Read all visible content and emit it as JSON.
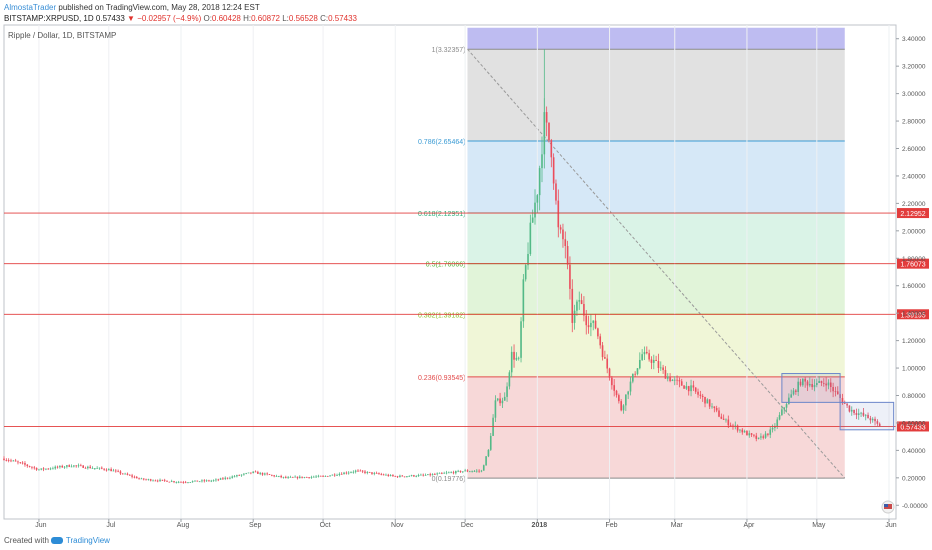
{
  "header": {
    "author": "AlmostaTrader",
    "published_text": " published on TradingView.com, May 28, 2018 12:24 EST"
  },
  "symbol_line": {
    "symbol": "BITSTAMP:XRPUSD, 1D",
    "last": "0.57433",
    "change": "▼ −0.02957 (−4.9%)",
    "o_label": "O:",
    "o": "0.60428",
    "h_label": "H:",
    "h": "0.60872",
    "l_label": "L:",
    "l": "0.56528",
    "c_label": "C:",
    "c": "0.57433"
  },
  "legend_text": "Ripple / Dollar, 1D, BITSTAMP",
  "footer": {
    "created_with": "Created with",
    "brand": "TradingView"
  },
  "chart_data": {
    "type": "candlestick",
    "title": "Ripple / Dollar, 1D, BITSTAMP",
    "y_axis_side": "right",
    "ylim": [
      -0.1,
      3.5
    ],
    "y_ticks": [
      -0.0,
      0.2,
      0.4,
      0.6,
      0.8,
      1.0,
      1.2,
      1.4,
      1.6,
      1.8,
      2.0,
      2.2,
      2.4,
      2.6,
      2.8,
      3.0,
      3.2,
      3.4
    ],
    "y_tick_labels": [
      "-0.00000",
      "0.20000",
      "0.40000",
      "0.60000",
      "0.80000",
      "1.00000",
      "1.20000",
      "1.40000",
      "1.60000",
      "1.80000",
      "2.00000",
      "2.20000",
      "2.40000",
      "2.60000",
      "2.80000",
      "3.00000",
      "3.20000",
      "3.40000"
    ],
    "x_tick_labels": [
      "Jun",
      "Jul",
      "Aug",
      "Sep",
      "Oct",
      "Nov",
      "Dec",
      "2018",
      "Feb",
      "Mar",
      "Apr",
      "May",
      "Jun"
    ],
    "x_tick_dates": [
      "2017-06-01",
      "2017-07-01",
      "2017-08-01",
      "2017-09-01",
      "2017-10-01",
      "2017-11-01",
      "2017-12-01",
      "2018-01-01",
      "2018-02-01",
      "2018-03-01",
      "2018-04-01",
      "2018-05-01",
      "2018-06-01"
    ],
    "x_range": [
      "2017-05-17",
      "2018-06-04"
    ],
    "candle_colors": {
      "up": "#53b987",
      "down": "#eb4d5c"
    },
    "price_path": [
      [
        "2017-05-17",
        0.34
      ],
      [
        "2017-05-25",
        0.3
      ],
      [
        "2017-06-01",
        0.26
      ],
      [
        "2017-06-15",
        0.29
      ],
      [
        "2017-07-01",
        0.26
      ],
      [
        "2017-07-15",
        0.19
      ],
      [
        "2017-08-01",
        0.17
      ],
      [
        "2017-08-15",
        0.18
      ],
      [
        "2017-09-01",
        0.24
      ],
      [
        "2017-09-15",
        0.2
      ],
      [
        "2017-10-01",
        0.21
      ],
      [
        "2017-10-15",
        0.25
      ],
      [
        "2017-11-01",
        0.21
      ],
      [
        "2017-11-15",
        0.22
      ],
      [
        "2017-12-01",
        0.25
      ],
      [
        "2017-12-08",
        0.25
      ],
      [
        "2017-12-11",
        0.4
      ],
      [
        "2017-12-14",
        0.75
      ],
      [
        "2017-12-18",
        0.78
      ],
      [
        "2017-12-21",
        1.1
      ],
      [
        "2017-12-24",
        1.05
      ],
      [
        "2017-12-26",
        1.6
      ],
      [
        "2017-12-29",
        2.0
      ],
      [
        "2018-01-01",
        2.3
      ],
      [
        "2018-01-04",
        2.8
      ],
      [
        "2018-01-07",
        2.6
      ],
      [
        "2018-01-10",
        2.0
      ],
      [
        "2018-01-13",
        1.9
      ],
      [
        "2018-01-16",
        1.35
      ],
      [
        "2018-01-19",
        1.5
      ],
      [
        "2018-01-22",
        1.35
      ],
      [
        "2018-01-26",
        1.3
      ],
      [
        "2018-01-30",
        1.05
      ],
      [
        "2018-02-02",
        0.9
      ],
      [
        "2018-02-06",
        0.7
      ],
      [
        "2018-02-09",
        0.85
      ],
      [
        "2018-02-15",
        1.1
      ],
      [
        "2018-02-20",
        1.05
      ],
      [
        "2018-02-25",
        0.95
      ],
      [
        "2018-03-01",
        0.9
      ],
      [
        "2018-03-08",
        0.85
      ],
      [
        "2018-03-15",
        0.75
      ],
      [
        "2018-03-22",
        0.62
      ],
      [
        "2018-04-01",
        0.52
      ],
      [
        "2018-04-06",
        0.48
      ],
      [
        "2018-04-12",
        0.55
      ],
      [
        "2018-04-18",
        0.75
      ],
      [
        "2018-04-24",
        0.9
      ],
      [
        "2018-05-01",
        0.88
      ],
      [
        "2018-05-05",
        0.9
      ],
      [
        "2018-05-10",
        0.8
      ],
      [
        "2018-05-15",
        0.7
      ],
      [
        "2018-05-20",
        0.66
      ],
      [
        "2018-05-24",
        0.63
      ],
      [
        "2018-05-28",
        0.57433
      ]
    ],
    "fibonacci": {
      "start_date": "2017-12-02",
      "end_date": "2018-05-13",
      "trend_line": {
        "from": [
          "2017-12-02",
          3.32357
        ],
        "to": [
          "2018-05-13",
          0.19776
        ]
      },
      "levels": [
        {
          "label": "1(3.32357)",
          "value": 3.32357,
          "color": "#8a8a8a"
        },
        {
          "label": "0.786(2.65464)",
          "value": 2.65464,
          "color": "#3b9bd4"
        },
        {
          "label": "0.618(2.12951)",
          "value": 2.12951,
          "color": "#2bb07a"
        },
        {
          "label": "0.5(1.76066)",
          "value": 1.76066,
          "color": "#55b43a"
        },
        {
          "label": "0.382(1.39182)",
          "value": 1.39182,
          "color": "#8cbf2c"
        },
        {
          "label": "0.236(0.93545)",
          "value": 0.93545,
          "color": "#e24b4b"
        },
        {
          "label": "0(0.19776)",
          "value": 0.19776,
          "color": "#8a8a8a"
        }
      ],
      "zones": [
        {
          "from": 3.32357,
          "to": 3.48,
          "color": "#b3b0ee"
        },
        {
          "from": 2.65464,
          "to": 3.32357,
          "color": "#dcdcdc"
        },
        {
          "from": 2.12951,
          "to": 2.65464,
          "color": "#cfe4f6"
        },
        {
          "from": 1.76066,
          "to": 2.12951,
          "color": "#d3f1e3"
        },
        {
          "from": 1.39182,
          "to": 1.76066,
          "color": "#dcf2d2"
        },
        {
          "from": 0.93545,
          "to": 1.39182,
          "color": "#edf4d0"
        },
        {
          "from": 0.19776,
          "to": 0.93545,
          "color": "#f6d1d1"
        }
      ]
    },
    "horizontal_lines": [
      {
        "value": 2.12952,
        "label": "2.12952",
        "color": "#e23c3c"
      },
      {
        "value": 1.76073,
        "label": "1.76073",
        "color": "#e23c3c"
      },
      {
        "value": 1.39195,
        "label": "1.39195",
        "color": "#e23c3c"
      },
      {
        "value": 0.57433,
        "label": "0.57433",
        "color": "#e23c3c"
      }
    ],
    "rectangles": [
      {
        "from_date": "2018-04-16",
        "to_date": "2018-05-11",
        "top": 0.96,
        "bottom": 0.75,
        "color": "#6b86c9"
      },
      {
        "from_date": "2018-05-11",
        "to_date": "2018-06-03",
        "top": 0.75,
        "bottom": 0.55,
        "color": "#6b86c9"
      }
    ],
    "last_price": {
      "value": 0.57433,
      "label": "0.57433",
      "color": "#e23c3c"
    }
  }
}
